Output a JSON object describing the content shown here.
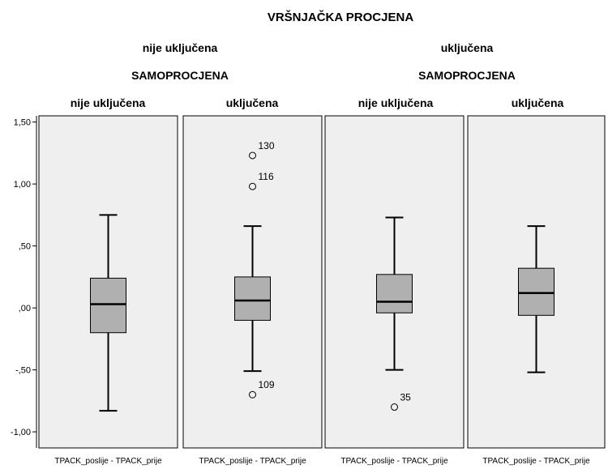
{
  "chart_data": {
    "type": "boxplot",
    "title": "VRŠNJAČKA PROCJENA",
    "outer_groups": [
      {
        "label": "nije uključena",
        "inner_title": "SAMOPROCJENA",
        "subgroups": [
          "nije uključena",
          "uključena"
        ]
      },
      {
        "label": "uključena",
        "inner_title": "SAMOPROCJENA",
        "subgroups": [
          "nije uključena",
          "uključena"
        ]
      }
    ],
    "ylim": [
      -1.13,
      1.55
    ],
    "y_ticks": [
      {
        "value": 1.5,
        "label": "1,50"
      },
      {
        "value": 1.0,
        "label": "1,00"
      },
      {
        "value": 0.5,
        "label": ",50"
      },
      {
        "value": 0.0,
        "label": ",00"
      },
      {
        "value": -0.5,
        "label": "-,50"
      },
      {
        "value": -1.0,
        "label": "-1,00"
      }
    ],
    "panels": [
      {
        "xlabel": "TPACK_poslije - TPACK_prije",
        "min": -0.83,
        "q1": -0.2,
        "median": 0.03,
        "q3": 0.24,
        "max": 0.75,
        "outliers": []
      },
      {
        "xlabel": "TPACK_poslije - TPACK_prije",
        "min": -0.51,
        "q1": -0.1,
        "median": 0.06,
        "q3": 0.25,
        "max": 0.66,
        "outliers": [
          {
            "value": 1.23,
            "label": "130"
          },
          {
            "value": 0.98,
            "label": "116"
          },
          {
            "value": -0.7,
            "label": "109"
          }
        ]
      },
      {
        "xlabel": "TPACK_poslije - TPACK_prije",
        "min": -0.5,
        "q1": -0.04,
        "median": 0.05,
        "q3": 0.27,
        "max": 0.73,
        "outliers": [
          {
            "value": -0.8,
            "label": "35"
          }
        ]
      },
      {
        "xlabel": "TPACK_poslije - TPACK_prije",
        "min": -0.52,
        "q1": -0.06,
        "median": 0.12,
        "q3": 0.32,
        "max": 0.66,
        "outliers": []
      }
    ],
    "grid": false,
    "colors": {
      "panel_bg": "#efefef",
      "box_fill": "#b0b0b0",
      "stroke": "#000000"
    }
  }
}
